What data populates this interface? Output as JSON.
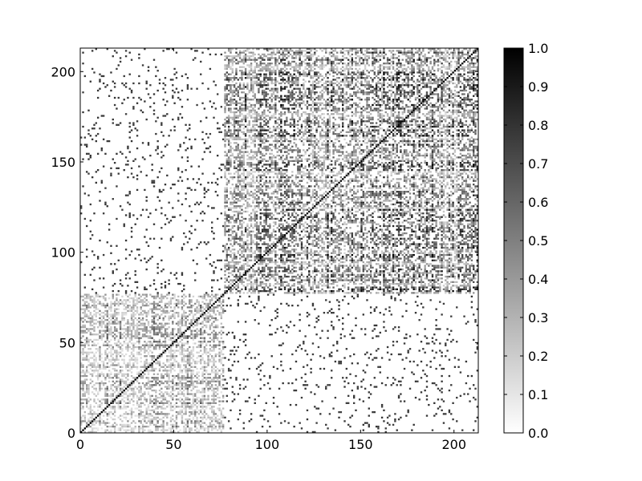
{
  "chart_data": {
    "type": "heatmap",
    "title": "",
    "xlabel": "",
    "ylabel": "",
    "matrix_size": 213,
    "xlim": [
      0,
      213
    ],
    "ylim": [
      0,
      213
    ],
    "x_ticks": [
      0,
      50,
      100,
      150,
      200
    ],
    "y_ticks": [
      0,
      50,
      100,
      150,
      200
    ],
    "colormap": "gray_r",
    "value_range": [
      0.0,
      1.0
    ],
    "diagonal_value": 1.0,
    "clusters": [
      {
        "start": 0,
        "end": 77,
        "mean_similarity": 0.35
      },
      {
        "start": 77,
        "end": 213,
        "mean_similarity": 0.55
      }
    ],
    "colorbar": {
      "ticks": [
        "0.0",
        "0.1",
        "0.2",
        "0.3",
        "0.4",
        "0.5",
        "0.6",
        "0.7",
        "0.8",
        "0.9",
        "1.0"
      ],
      "colors": [
        "#ffffff",
        "#000000"
      ]
    },
    "grid": false,
    "legend": "none"
  }
}
